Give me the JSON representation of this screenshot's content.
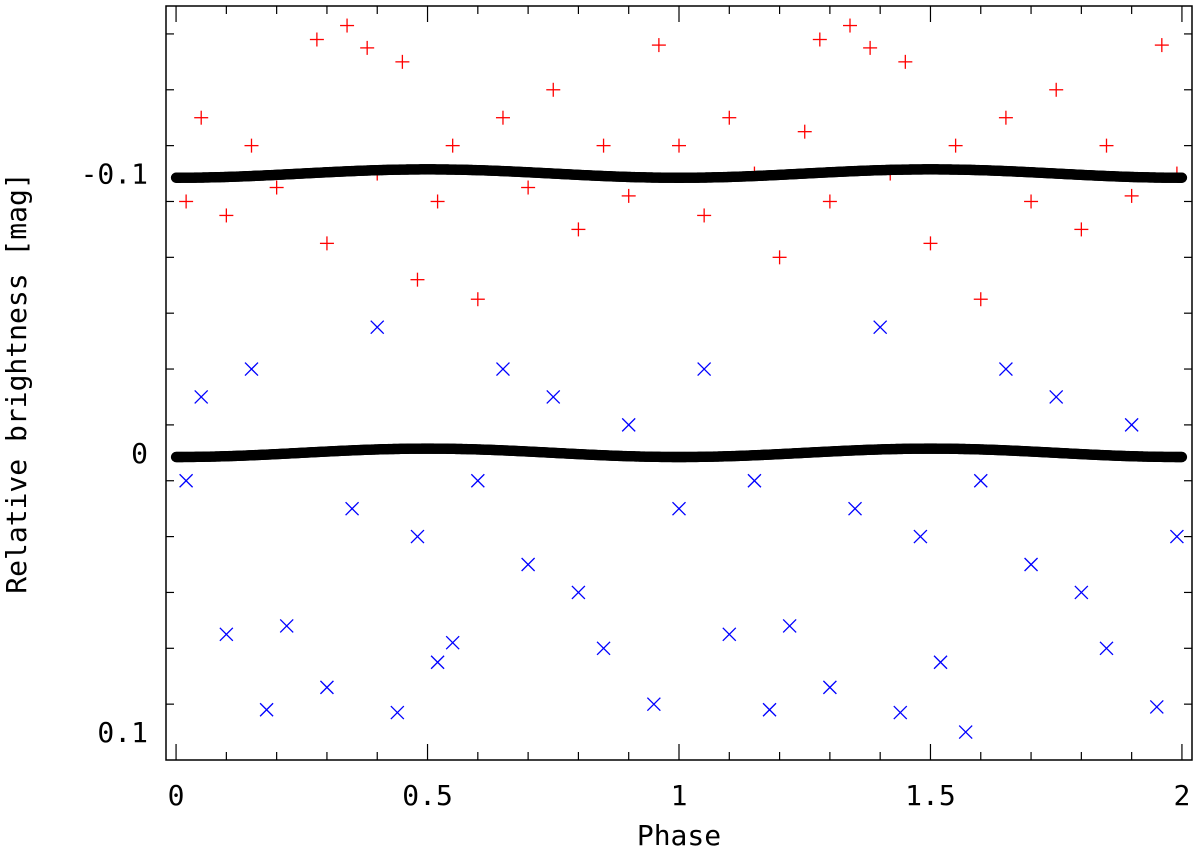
{
  "chart_data": {
    "type": "scatter",
    "title": "",
    "xlabel": "Phase",
    "ylabel": "Relative brightness [mag]",
    "xlim": [
      -0.02,
      2.02
    ],
    "ylim": [
      0.11,
      -0.16
    ],
    "y_inverted": true,
    "x_ticks": [
      {
        "v": 0,
        "label": "0"
      },
      {
        "v": 0.5,
        "label": "0.5"
      },
      {
        "v": 1,
        "label": "1"
      },
      {
        "v": 1.5,
        "label": "1.5"
      },
      {
        "v": 2,
        "label": "2"
      }
    ],
    "y_ticks": [
      {
        "v": -0.1,
        "label": "-0.1"
      },
      {
        "v": 0,
        "label": "0"
      },
      {
        "v": 0.1,
        "label": "0.1"
      }
    ],
    "grid": false,
    "series": [
      {
        "marker": "plus",
        "color": "#ff0000",
        "points": [
          [
            0.02,
            -0.09
          ],
          [
            0.05,
            -0.12
          ],
          [
            0.1,
            -0.085
          ],
          [
            0.15,
            -0.11
          ],
          [
            0.2,
            -0.095
          ],
          [
            0.28,
            -0.148
          ],
          [
            0.3,
            -0.075
          ],
          [
            0.34,
            -0.153
          ],
          [
            0.38,
            -0.145
          ],
          [
            0.4,
            -0.1
          ],
          [
            0.45,
            -0.14
          ],
          [
            0.48,
            -0.062
          ],
          [
            0.52,
            -0.09
          ],
          [
            0.55,
            -0.11
          ],
          [
            0.6,
            -0.055
          ],
          [
            0.65,
            -0.12
          ],
          [
            0.7,
            -0.095
          ],
          [
            0.75,
            -0.13
          ],
          [
            0.8,
            -0.08
          ],
          [
            0.85,
            -0.11
          ],
          [
            0.9,
            -0.092
          ],
          [
            0.96,
            -0.146
          ],
          [
            1.0,
            -0.11
          ],
          [
            1.05,
            -0.085
          ],
          [
            1.1,
            -0.12
          ],
          [
            1.15,
            -0.1
          ],
          [
            1.2,
            -0.07
          ],
          [
            1.25,
            -0.115
          ],
          [
            1.28,
            -0.148
          ],
          [
            1.3,
            -0.09
          ],
          [
            1.34,
            -0.153
          ],
          [
            1.38,
            -0.145
          ],
          [
            1.42,
            -0.1
          ],
          [
            1.45,
            -0.14
          ],
          [
            1.5,
            -0.075
          ],
          [
            1.55,
            -0.11
          ],
          [
            1.6,
            -0.055
          ],
          [
            1.65,
            -0.12
          ],
          [
            1.7,
            -0.09
          ],
          [
            1.75,
            -0.13
          ],
          [
            1.8,
            -0.08
          ],
          [
            1.85,
            -0.11
          ],
          [
            1.9,
            -0.092
          ],
          [
            1.96,
            -0.146
          ],
          [
            1.99,
            -0.1
          ]
        ]
      },
      {
        "marker": "cross",
        "color": "#0000ff",
        "points": [
          [
            0.02,
            0.01
          ],
          [
            0.05,
            -0.02
          ],
          [
            0.1,
            0.065
          ],
          [
            0.15,
            -0.03
          ],
          [
            0.18,
            0.092
          ],
          [
            0.22,
            0.062
          ],
          [
            0.3,
            0.084
          ],
          [
            0.35,
            0.02
          ],
          [
            0.4,
            -0.045
          ],
          [
            0.44,
            0.093
          ],
          [
            0.48,
            0.03
          ],
          [
            0.52,
            0.075
          ],
          [
            0.55,
            0.068
          ],
          [
            0.6,
            0.01
          ],
          [
            0.65,
            -0.03
          ],
          [
            0.7,
            0.04
          ],
          [
            0.75,
            -0.02
          ],
          [
            0.8,
            0.05
          ],
          [
            0.85,
            0.07
          ],
          [
            0.9,
            -0.01
          ],
          [
            0.95,
            0.09
          ],
          [
            1.0,
            0.02
          ],
          [
            1.05,
            -0.03
          ],
          [
            1.1,
            0.065
          ],
          [
            1.15,
            0.01
          ],
          [
            1.18,
            0.092
          ],
          [
            1.22,
            0.062
          ],
          [
            1.3,
            0.084
          ],
          [
            1.35,
            0.02
          ],
          [
            1.4,
            -0.045
          ],
          [
            1.44,
            0.093
          ],
          [
            1.48,
            0.03
          ],
          [
            1.52,
            0.075
          ],
          [
            1.57,
            0.1
          ],
          [
            1.6,
            0.01
          ],
          [
            1.65,
            -0.03
          ],
          [
            1.7,
            0.04
          ],
          [
            1.75,
            -0.02
          ],
          [
            1.8,
            0.05
          ],
          [
            1.85,
            0.07
          ],
          [
            1.9,
            -0.01
          ],
          [
            1.95,
            0.091
          ],
          [
            1.99,
            0.03
          ]
        ]
      },
      {
        "marker": "filled-circle",
        "color": "#000000",
        "model": "sinusoid",
        "x_range": [
          0,
          2
        ],
        "offset": -0.1,
        "amplitude": 0.0015,
        "peak_phase": 0.0
      },
      {
        "marker": "filled-circle",
        "color": "#000000",
        "model": "sinusoid",
        "x_range": [
          0,
          2
        ],
        "offset": 0.0,
        "amplitude": 0.0015,
        "peak_phase": 0.0
      }
    ]
  }
}
